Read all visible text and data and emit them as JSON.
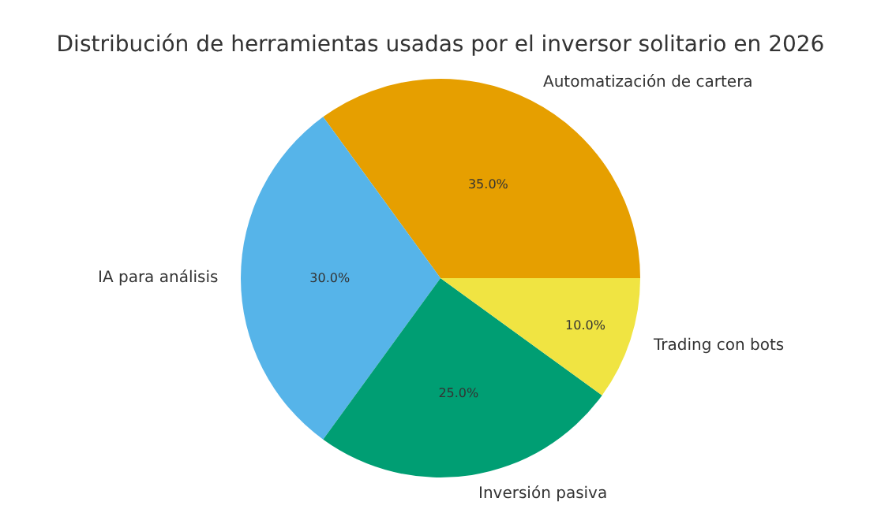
{
  "chart_data": {
    "type": "pie",
    "title": "Distribución de herramientas usadas por el inversor solitario en 2026",
    "categories": [
      "Automatización de cartera",
      "IA para análisis",
      "Inversión pasiva",
      "Trading con bots"
    ],
    "values": [
      35,
      30,
      25,
      10
    ],
    "colors": [
      "#e69f00",
      "#56b4e9",
      "#009e73",
      "#f0e442"
    ],
    "value_labels": [
      "35.0%",
      "30.0%",
      "25.0%",
      "10.0%"
    ],
    "legend": false
  }
}
